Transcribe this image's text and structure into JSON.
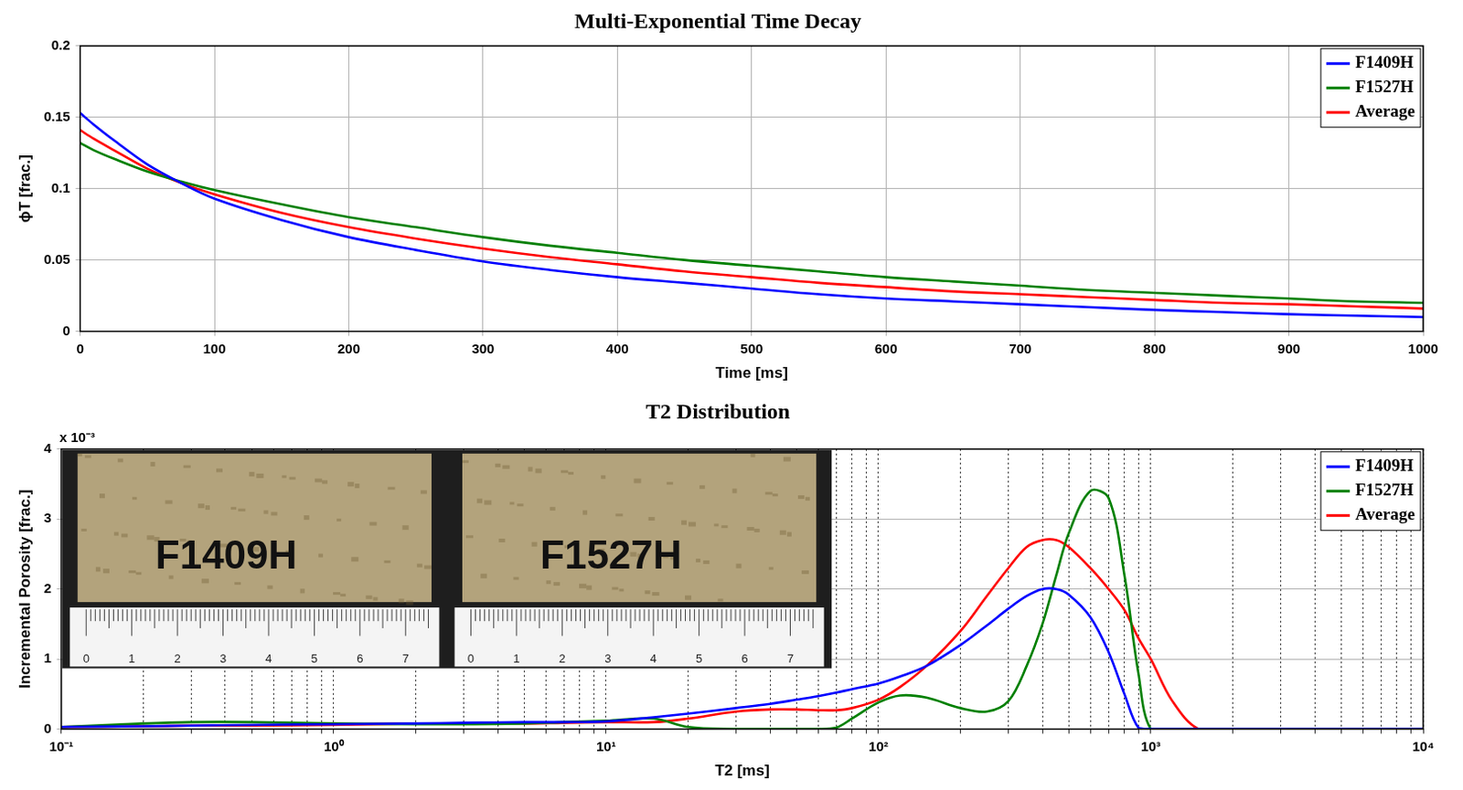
{
  "chart_data": [
    {
      "type": "line",
      "title": "Multi-Exponential Time Decay",
      "x_label": "Time [ms]",
      "y_label": "ϕT [frac.]",
      "x": [
        0,
        10,
        25,
        50,
        75,
        100,
        150,
        200,
        250,
        300,
        350,
        400,
        450,
        500,
        550,
        600,
        650,
        700,
        750,
        800,
        850,
        900,
        950,
        1000
      ],
      "series": [
        {
          "name": "F1409H",
          "color": "#0000ff",
          "values": [
            0.153,
            0.145,
            0.134,
            0.117,
            0.104,
            0.093,
            0.078,
            0.066,
            0.057,
            0.049,
            0.043,
            0.038,
            0.034,
            0.03,
            0.026,
            0.023,
            0.021,
            0.019,
            0.017,
            0.015,
            0.0135,
            0.012,
            0.011,
            0.01
          ]
        },
        {
          "name": "F1527H",
          "color": "#008000",
          "values": [
            0.132,
            0.127,
            0.121,
            0.112,
            0.105,
            0.099,
            0.089,
            0.08,
            0.073,
            0.066,
            0.06,
            0.055,
            0.05,
            0.046,
            0.042,
            0.038,
            0.035,
            0.032,
            0.029,
            0.027,
            0.025,
            0.023,
            0.021,
            0.02
          ]
        },
        {
          "name": "Average",
          "color": "#ff0000",
          "values": [
            0.141,
            0.135,
            0.127,
            0.114,
            0.104,
            0.096,
            0.083,
            0.073,
            0.065,
            0.058,
            0.052,
            0.047,
            0.042,
            0.038,
            0.034,
            0.031,
            0.028,
            0.026,
            0.024,
            0.022,
            0.02,
            0.019,
            0.0175,
            0.016
          ]
        }
      ],
      "xlim": [
        0,
        1000
      ],
      "xticks": [
        0,
        100,
        200,
        300,
        400,
        500,
        600,
        700,
        800,
        900,
        1000
      ],
      "ylim": [
        0,
        0.2
      ],
      "yticks": [
        0,
        0.05,
        0.1,
        0.15,
        0.2
      ],
      "grid": true,
      "legend": "upper right"
    },
    {
      "type": "line",
      "title": "T2 Distribution",
      "x_label": "T2 [ms]",
      "y_label": "Incremental Porosity [frac.]",
      "y_multiplier": "x 10⁻³",
      "log": "x",
      "x": [
        0.1,
        0.2,
        0.3,
        0.5,
        1,
        2,
        3,
        5,
        7,
        10,
        15,
        20,
        30,
        40,
        50,
        60,
        70,
        80,
        100,
        120,
        150,
        200,
        250,
        300,
        350,
        400,
        450,
        500,
        600,
        700,
        800,
        900,
        1000,
        1200,
        1500,
        2000,
        5000,
        10000
      ],
      "series": [
        {
          "name": "F1409H",
          "color": "#0000ff",
          "values": [
            3e-05,
            4e-05,
            5e-05,
            6e-05,
            7e-05,
            8e-05,
            9e-05,
            0.0001,
            0.0001,
            0.00011,
            0.00017,
            0.00022,
            0.0003,
            0.00036,
            0.00042,
            0.00047,
            0.00052,
            0.00057,
            0.00065,
            0.00075,
            0.0009,
            0.0012,
            0.00148,
            0.00172,
            0.0019,
            0.002,
            0.002,
            0.00192,
            0.0016,
            0.0011,
            0.0005,
            2e-05,
            0,
            0,
            0,
            0,
            0,
            0
          ]
        },
        {
          "name": "F1527H",
          "color": "#008000",
          "values": [
            3e-05,
            8e-05,
            0.0001,
            0.0001,
            8e-05,
            7e-05,
            7e-05,
            8e-05,
            0.0001,
            0.00012,
            0.00015,
            3e-05,
            0,
            0,
            0,
            0,
            2e-05,
            0.00015,
            0.00038,
            0.00048,
            0.00045,
            0.0003,
            0.00025,
            0.0004,
            0.0009,
            0.0015,
            0.0022,
            0.0028,
            0.0034,
            0.0033,
            0.0022,
            0.0008,
            0,
            0,
            0,
            0,
            0,
            0
          ]
        },
        {
          "name": "Average",
          "color": "#ff0000",
          "values": [
            3e-05,
            4e-05,
            5e-05,
            5e-05,
            6e-05,
            8e-05,
            8e-05,
            8e-05,
            9e-05,
            0.0001,
            0.0001,
            0.00015,
            0.00025,
            0.00028,
            0.00028,
            0.00027,
            0.00027,
            0.0003,
            0.00042,
            0.0006,
            0.0009,
            0.0014,
            0.0019,
            0.0023,
            0.0026,
            0.0027,
            0.0027,
            0.0026,
            0.0023,
            0.002,
            0.0017,
            0.0013,
            0.001,
            0.0004,
            0,
            0,
            0,
            0
          ]
        }
      ],
      "xlim": [
        0.1,
        10000
      ],
      "xticks": [
        {
          "value": 0.1,
          "label": "10⁻¹"
        },
        {
          "value": 1,
          "label": "10⁰"
        },
        {
          "value": 10,
          "label": "10¹"
        },
        {
          "value": 100,
          "label": "10²"
        },
        {
          "value": 1000,
          "label": "10³"
        },
        {
          "value": 10000,
          "label": "10⁴"
        }
      ],
      "ylim": [
        0,
        0.004
      ],
      "yticks": [
        0,
        {
          "value": 0.001,
          "label": "1"
        },
        {
          "value": 0.002,
          "label": "2"
        },
        {
          "value": 0.003,
          "label": "3"
        },
        {
          "value": 0.004,
          "label": "4"
        }
      ],
      "grid": true,
      "legend": "upper right",
      "inset": {
        "samples": [
          "F1409H",
          "F1527H"
        ],
        "ruler_labels": [
          0,
          1,
          2,
          3,
          4,
          5,
          6,
          7
        ]
      }
    }
  ]
}
